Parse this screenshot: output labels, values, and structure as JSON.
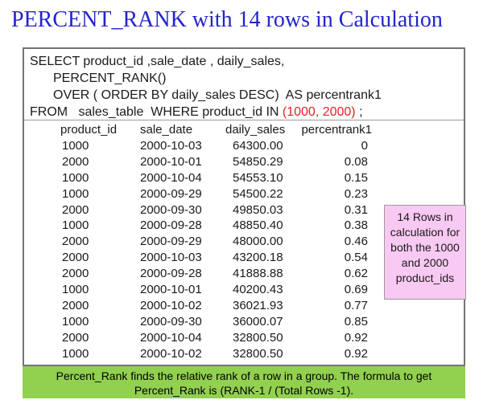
{
  "title": "PERCENT_RANK with 14 rows in Calculation",
  "sql": {
    "line1": "SELECT product_id ,sale_date , daily_sales,",
    "line2": "PERCENT_RANK()",
    "line3": "OVER ( ORDER BY daily_sales DESC)  AS percentrank1",
    "line4_prefix": "FROM   sales_table  WHERE product_id IN ",
    "line4_highlight": "(1000, 2000)",
    "line4_suffix": " ;"
  },
  "table": {
    "columns": [
      "product_id",
      "sale_date",
      "daily_sales",
      "percentrank1"
    ],
    "rows": [
      [
        "1000",
        "2000-10-03",
        "64300.00",
        "0"
      ],
      [
        "2000",
        "2000-10-01",
        "54850.29",
        "0.08"
      ],
      [
        "1000",
        "2000-10-04",
        "54553.10",
        "0.15"
      ],
      [
        "1000",
        "2000-09-29",
        "54500.22",
        "0.23"
      ],
      [
        "2000",
        "2000-09-30",
        "49850.03",
        "0.31"
      ],
      [
        "1000",
        "2000-09-28",
        "48850.40",
        "0.38"
      ],
      [
        "2000",
        "2000-09-29",
        "48000.00",
        "0.46"
      ],
      [
        "2000",
        "2000-10-03",
        "43200.18",
        "0.54"
      ],
      [
        "2000",
        "2000-09-28",
        "41888.88",
        "0.62"
      ],
      [
        "1000",
        "2000-10-01",
        "40200.43",
        "0.69"
      ],
      [
        "2000",
        "2000-10-02",
        "36021.93",
        "0.77"
      ],
      [
        "1000",
        "2000-09-30",
        "36000.07",
        "0.85"
      ],
      [
        "2000",
        "2000-10-04",
        "32800.50",
        "0.92"
      ],
      [
        "1000",
        "2000-10-02",
        "32800.50",
        "0.92"
      ]
    ]
  },
  "callout": {
    "text": "14 Rows in calculation for both the 1000 and 2000 product_ids"
  },
  "footer": {
    "line1": "Percent_Rank finds the relative rank of a row in a group.  The formula to get",
    "line2": "Percent_Rank is (RANK-1 / (Total Rows -1)."
  },
  "colors": {
    "title_blue": "#2424ce",
    "sql_red": "#e32222",
    "callout_pink": "#f8c9f2",
    "footer_green": "#92d050",
    "box_border_gray": "#747474"
  }
}
